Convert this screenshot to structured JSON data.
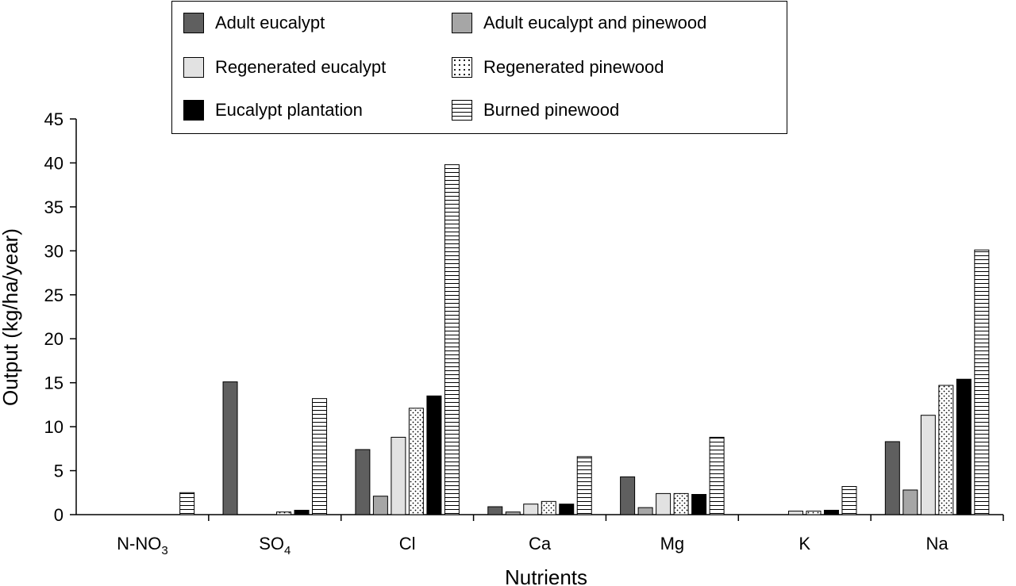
{
  "chart_data": {
    "type": "bar",
    "ylabel": "Output (kg/ha/year)",
    "xlabel": "Nutrients",
    "ylim": [
      0,
      45
    ],
    "yticks": [
      0,
      5,
      10,
      15,
      20,
      25,
      30,
      35,
      40,
      45
    ],
    "categories": [
      {
        "base": "N-NO",
        "sub": "3",
        "after": ""
      },
      {
        "base": "SO",
        "sub": "4",
        "after": ""
      },
      {
        "base": "Cl",
        "sub": "",
        "after": ""
      },
      {
        "base": "Ca",
        "sub": "",
        "after": ""
      },
      {
        "base": "Mg",
        "sub": "",
        "after": ""
      },
      {
        "base": "K",
        "sub": "",
        "after": ""
      },
      {
        "base": "Na",
        "sub": "",
        "after": ""
      }
    ],
    "legend_position": "top",
    "grid": false,
    "series": [
      {
        "name": "Adult eucalypt",
        "pattern": "solid",
        "color": "#5f5f5f",
        "values": [
          0,
          15.1,
          7.4,
          0.9,
          4.3,
          0,
          8.3
        ]
      },
      {
        "name": "Adult eucalypt and pinewood",
        "pattern": "solid",
        "color": "#a6a6a6",
        "values": [
          0,
          0,
          2.1,
          0.3,
          0.8,
          0,
          2.8
        ]
      },
      {
        "name": "Regenerated eucalypt",
        "pattern": "solid",
        "color": "#e2e2e2",
        "values": [
          0,
          0,
          8.8,
          1.2,
          2.4,
          0.4,
          11.3
        ]
      },
      {
        "name": "Regenerated pinewood",
        "pattern": "dots",
        "color": "#ffffff",
        "values": [
          0,
          0.3,
          12.1,
          1.5,
          2.4,
          0.4,
          14.7
        ]
      },
      {
        "name": "Eucalypt plantation",
        "pattern": "solid",
        "color": "#000000",
        "values": [
          0,
          0.5,
          13.5,
          1.2,
          2.3,
          0.5,
          15.4
        ]
      },
      {
        "name": "Burned pinewood",
        "pattern": "hlines",
        "color": "#ffffff",
        "values": [
          2.5,
          13.2,
          39.8,
          6.6,
          8.8,
          3.2,
          30.1
        ]
      }
    ],
    "legend_layout": [
      [
        "Adult eucalypt",
        "Adult eucalypt and pinewood"
      ],
      [
        "Regenerated eucalypt",
        "Regenerated pinewood"
      ],
      [
        "Eucalypt plantation",
        "Burned pinewood"
      ]
    ]
  }
}
